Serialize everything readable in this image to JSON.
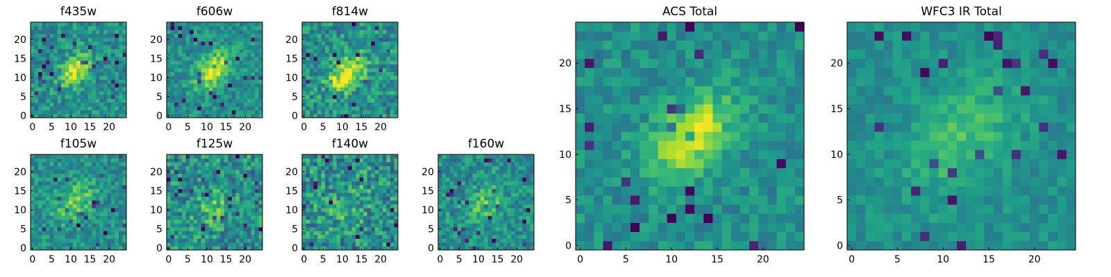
{
  "chart_data": [
    {
      "type": "heatmap",
      "title": "f435w",
      "grid": false,
      "xticks": [
        "0",
        "5",
        "10",
        "15",
        "20"
      ],
      "yticks": [
        "0",
        "5",
        "10",
        "15",
        "20"
      ],
      "xlim": [
        0,
        25
      ],
      "ylim": [
        0,
        25
      ],
      "colormap": "viridis",
      "source_center": [
        11,
        12
      ],
      "source_peak": 0.8,
      "source_width": 2.6,
      "noise": 0.17
    },
    {
      "type": "heatmap",
      "title": "f606w",
      "grid": false,
      "xticks": [
        "0",
        "5",
        "10",
        "15",
        "20"
      ],
      "yticks": [
        "0",
        "5",
        "10",
        "15",
        "20"
      ],
      "xlim": [
        0,
        25
      ],
      "ylim": [
        0,
        25
      ],
      "colormap": "viridis",
      "source_center": [
        12,
        12
      ],
      "source_peak": 0.78,
      "source_width": 3.0,
      "noise": 0.15
    },
    {
      "type": "heatmap",
      "title": "f814w",
      "grid": false,
      "xticks": [
        "0",
        "5",
        "10",
        "15",
        "20"
      ],
      "yticks": [
        "0",
        "5",
        "10",
        "15",
        "20"
      ],
      "xlim": [
        0,
        25
      ],
      "ylim": [
        0,
        25
      ],
      "colormap": "viridis",
      "source_center": [
        11,
        11
      ],
      "source_peak": 0.82,
      "source_width": 3.0,
      "noise": 0.2
    },
    {
      "type": "heatmap",
      "title": "f105w",
      "grid": false,
      "xticks": [
        "0",
        "5",
        "10",
        "15",
        "20"
      ],
      "yticks": [
        "0",
        "5",
        "10",
        "15",
        "20"
      ],
      "xlim": [
        0,
        25
      ],
      "ylim": [
        0,
        25
      ],
      "colormap": "viridis",
      "source_center": [
        11,
        12
      ],
      "source_peak": 0.45,
      "source_width": 3.4,
      "noise": 0.16
    },
    {
      "type": "heatmap",
      "title": "f125w",
      "grid": false,
      "xticks": [
        "0",
        "5",
        "10",
        "15",
        "20"
      ],
      "yticks": [
        "0",
        "5",
        "10",
        "15",
        "20"
      ],
      "xlim": [
        0,
        25
      ],
      "ylim": [
        0,
        25
      ],
      "colormap": "viridis",
      "source_center": [
        12,
        11
      ],
      "source_peak": 0.3,
      "source_width": 3.4,
      "noise": 0.22
    },
    {
      "type": "heatmap",
      "title": "f140w",
      "grid": false,
      "xticks": [
        "0",
        "5",
        "10",
        "15",
        "20"
      ],
      "yticks": [
        "0",
        "5",
        "10",
        "15",
        "20"
      ],
      "xlim": [
        0,
        25
      ],
      "ylim": [
        0,
        25
      ],
      "colormap": "viridis",
      "source_center": [
        12,
        11
      ],
      "source_peak": 0.25,
      "source_width": 3.4,
      "noise": 0.24
    },
    {
      "type": "heatmap",
      "title": "f160w",
      "grid": false,
      "xticks": [
        "0",
        "5",
        "10",
        "15",
        "20"
      ],
      "yticks": [
        "0",
        "5",
        "10",
        "15",
        "20"
      ],
      "xlim": [
        0,
        25
      ],
      "ylim": [
        0,
        25
      ],
      "colormap": "viridis",
      "source_center": [
        12,
        12
      ],
      "source_peak": 0.38,
      "source_width": 3.2,
      "noise": 0.17
    },
    {
      "type": "heatmap",
      "title": "ACS Total",
      "grid": false,
      "xticks": [
        "0",
        "5",
        "10",
        "15",
        "20"
      ],
      "yticks": [
        "0",
        "5",
        "10",
        "15",
        "20"
      ],
      "xlim": [
        0,
        25
      ],
      "ylim": [
        0,
        25
      ],
      "colormap": "viridis",
      "source_center": [
        12,
        12
      ],
      "source_peak": 0.82,
      "source_width": 2.8,
      "noise": 0.12
    },
    {
      "type": "heatmap",
      "title": "WFC3 IR Total",
      "grid": false,
      "xticks": [
        "0",
        "5",
        "10",
        "15",
        "20"
      ],
      "yticks": [
        "0",
        "5",
        "10",
        "15",
        "20"
      ],
      "xlim": [
        0,
        25
      ],
      "ylim": [
        0,
        25
      ],
      "colormap": "viridis",
      "source_center": [
        12,
        12
      ],
      "source_peak": 0.35,
      "source_width": 4.0,
      "noise": 0.09
    }
  ]
}
